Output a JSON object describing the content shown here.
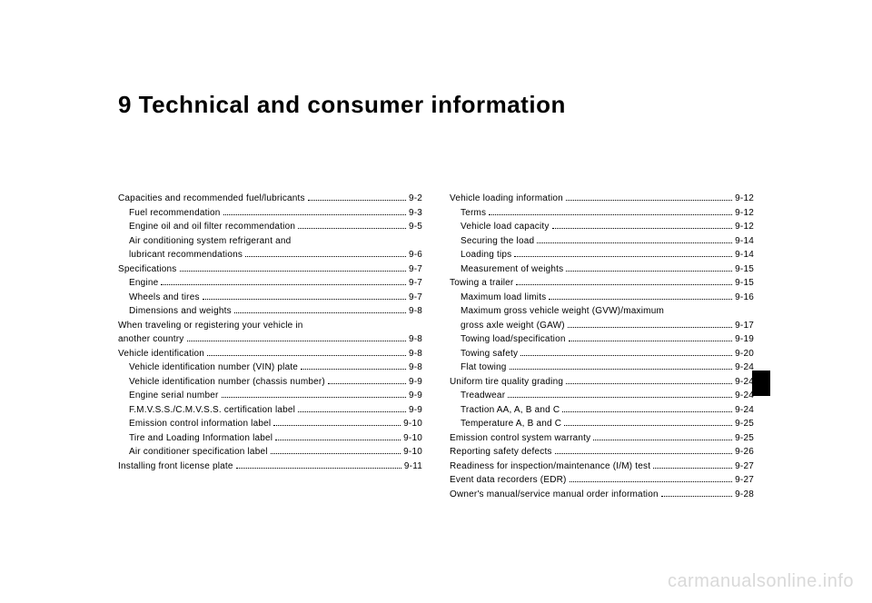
{
  "chapter_title": "9 Technical and consumer information",
  "watermark": "carmanualsonline.info",
  "toc_left": [
    {
      "label": "Capacities and recommended fuel/lubricants",
      "page": "9-2",
      "indent": 0
    },
    {
      "label": "Fuel recommendation",
      "page": "9-3",
      "indent": 1
    },
    {
      "label": "Engine oil and oil filter recommendation",
      "page": "9-5",
      "indent": 1
    },
    {
      "label": "Air conditioning system refrigerant and",
      "page": "",
      "indent": 1,
      "nodots": true
    },
    {
      "label": "lubricant recommendations",
      "page": "9-6",
      "indent": 1
    },
    {
      "label": "Specifications",
      "page": "9-7",
      "indent": 0
    },
    {
      "label": "Engine",
      "page": "9-7",
      "indent": 1
    },
    {
      "label": "Wheels and tires",
      "page": "9-7",
      "indent": 1
    },
    {
      "label": "Dimensions and weights",
      "page": "9-8",
      "indent": 1
    },
    {
      "label": "When traveling or registering your vehicle in",
      "page": "",
      "indent": 0,
      "nodots": true
    },
    {
      "label": "another country",
      "page": "9-8",
      "indent": 0
    },
    {
      "label": "Vehicle identification",
      "page": "9-8",
      "indent": 0
    },
    {
      "label": "Vehicle identification number (VIN) plate",
      "page": "9-8",
      "indent": 1
    },
    {
      "label": "Vehicle identification number (chassis number)",
      "page": "9-9",
      "indent": 1
    },
    {
      "label": "Engine serial number",
      "page": "9-9",
      "indent": 1
    },
    {
      "label": "F.M.V.S.S./C.M.V.S.S. certification label",
      "page": "9-9",
      "indent": 1
    },
    {
      "label": "Emission control information label",
      "page": "9-10",
      "indent": 1
    },
    {
      "label": "Tire and Loading Information label",
      "page": "9-10",
      "indent": 1
    },
    {
      "label": "Air conditioner specification label",
      "page": "9-10",
      "indent": 1
    },
    {
      "label": "Installing front license plate",
      "page": "9-11",
      "indent": 0
    }
  ],
  "toc_right": [
    {
      "label": "Vehicle loading information",
      "page": "9-12",
      "indent": 0
    },
    {
      "label": "Terms",
      "page": "9-12",
      "indent": 1
    },
    {
      "label": "Vehicle load capacity",
      "page": "9-12",
      "indent": 1
    },
    {
      "label": "Securing the load",
      "page": "9-14",
      "indent": 1
    },
    {
      "label": "Loading tips",
      "page": "9-14",
      "indent": 1
    },
    {
      "label": "Measurement of weights",
      "page": "9-15",
      "indent": 1
    },
    {
      "label": "Towing a trailer",
      "page": "9-15",
      "indent": 0
    },
    {
      "label": "Maximum load limits",
      "page": "9-16",
      "indent": 1
    },
    {
      "label": "Maximum gross vehicle weight (GVW)/maximum",
      "page": "",
      "indent": 1,
      "nodots": true
    },
    {
      "label": "gross axle weight (GAW)",
      "page": "9-17",
      "indent": 1
    },
    {
      "label": "Towing load/specification",
      "page": "9-19",
      "indent": 1
    },
    {
      "label": "Towing safety",
      "page": "9-20",
      "indent": 1
    },
    {
      "label": "Flat towing",
      "page": "9-24",
      "indent": 1
    },
    {
      "label": "Uniform tire quality grading",
      "page": "9-24",
      "indent": 0
    },
    {
      "label": "Treadwear",
      "page": "9-24",
      "indent": 1
    },
    {
      "label": "Traction AA, A, B and C",
      "page": "9-24",
      "indent": 1
    },
    {
      "label": "Temperature A, B and C",
      "page": "9-25",
      "indent": 1
    },
    {
      "label": "Emission control system warranty",
      "page": "9-25",
      "indent": 0
    },
    {
      "label": "Reporting safety defects",
      "page": "9-26",
      "indent": 0
    },
    {
      "label": "Readiness for inspection/maintenance (I/M) test",
      "page": "9-27",
      "indent": 0
    },
    {
      "label": "Event data recorders (EDR)",
      "page": "9-27",
      "indent": 0
    },
    {
      "label": "Owner's manual/service manual order information",
      "page": "9-28",
      "indent": 0
    }
  ]
}
